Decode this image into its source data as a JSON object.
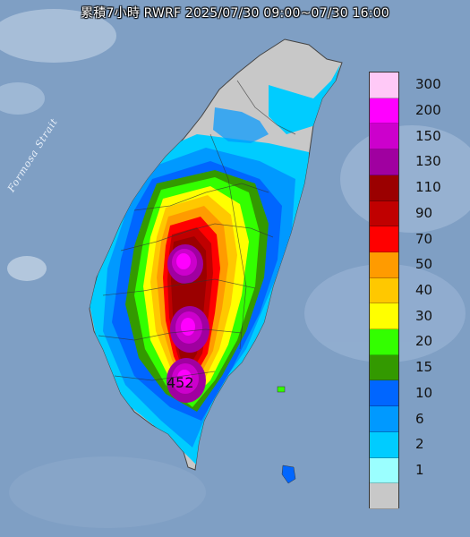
{
  "title": "累積7小時 RWRF 2025/07/30 09:00~07/30 16:00",
  "strait_label": "Formosa Strait",
  "peak_value": "452",
  "legend": [
    {
      "label": "300",
      "color": "#ffc9f7"
    },
    {
      "label": "200",
      "color": "#ff00ff"
    },
    {
      "label": "150",
      "color": "#cc00cc"
    },
    {
      "label": "130",
      "color": "#a000a0"
    },
    {
      "label": "110",
      "color": "#9b0000"
    },
    {
      "label": "90",
      "color": "#c00000"
    },
    {
      "label": "70",
      "color": "#ff0000"
    },
    {
      "label": "50",
      "color": "#ff9b00"
    },
    {
      "label": "40",
      "color": "#ffc800"
    },
    {
      "label": "30",
      "color": "#ffff00"
    },
    {
      "label": "20",
      "color": "#33ff00"
    },
    {
      "label": "15",
      "color": "#339900"
    },
    {
      "label": "10",
      "color": "#0066ff"
    },
    {
      "label": "6",
      "color": "#0099ff"
    },
    {
      "label": "2",
      "color": "#00ccff"
    },
    {
      "label": "1",
      "color": "#9bffff"
    },
    {
      "label": "",
      "color": "#c8c8c8"
    }
  ],
  "colors": {
    "sea": "#7f9fc4",
    "land_dry": "#c8c8c8"
  }
}
